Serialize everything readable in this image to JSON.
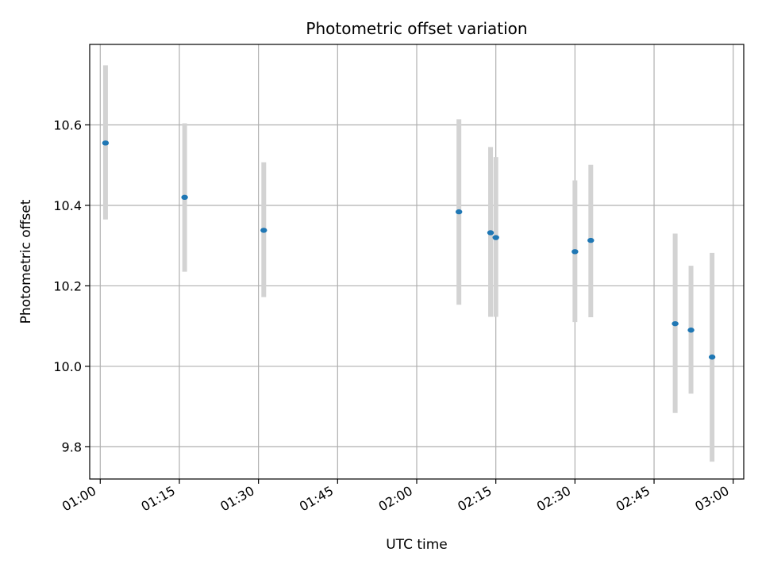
{
  "chart_data": {
    "type": "scatter",
    "title": "Photometric offset variation",
    "xlabel": "UTC time",
    "ylabel": "Photometric offset",
    "x_ticks": [
      "01:00",
      "01:15",
      "01:30",
      "01:45",
      "02:00",
      "02:15",
      "02:30",
      "02:45",
      "03:00"
    ],
    "x_tick_values": [
      "01:00",
      "01:15",
      "01:30",
      "01:45",
      "02:00",
      "02:15",
      "02:30",
      "02:45",
      "03:00"
    ],
    "y_ticks": [
      9.8,
      10.0,
      10.2,
      10.4,
      10.6
    ],
    "y_tick_labels": [
      "9.8",
      "10.0",
      "10.2",
      "10.4",
      "10.6"
    ],
    "xlim": [
      "00:58",
      "03:02"
    ],
    "ylim": [
      9.72,
      10.8
    ],
    "grid": true,
    "series": [
      {
        "marker_color": "#1f77b4",
        "errorbar_color": "#d3d3d3",
        "points": [
          {
            "x": "01:01",
            "y": 10.555,
            "y_low": 10.365,
            "y_high": 10.748
          },
          {
            "x": "01:16",
            "y": 10.42,
            "y_low": 10.235,
            "y_high": 10.604
          },
          {
            "x": "01:31",
            "y": 10.338,
            "y_low": 10.172,
            "y_high": 10.507
          },
          {
            "x": "02:08",
            "y": 10.384,
            "y_low": 10.153,
            "y_high": 10.614
          },
          {
            "x": "02:14",
            "y": 10.332,
            "y_low": 10.123,
            "y_high": 10.545
          },
          {
            "x": "02:15",
            "y": 10.32,
            "y_low": 10.123,
            "y_high": 10.52
          },
          {
            "x": "02:30",
            "y": 10.285,
            "y_low": 10.11,
            "y_high": 10.462
          },
          {
            "x": "02:33",
            "y": 10.313,
            "y_low": 10.122,
            "y_high": 10.501
          },
          {
            "x": "02:49",
            "y": 10.106,
            "y_low": 9.884,
            "y_high": 10.33
          },
          {
            "x": "02:52",
            "y": 10.09,
            "y_low": 9.932,
            "y_high": 10.25
          },
          {
            "x": "02:56",
            "y": 10.023,
            "y_low": 9.763,
            "y_high": 10.282
          }
        ]
      }
    ]
  }
}
